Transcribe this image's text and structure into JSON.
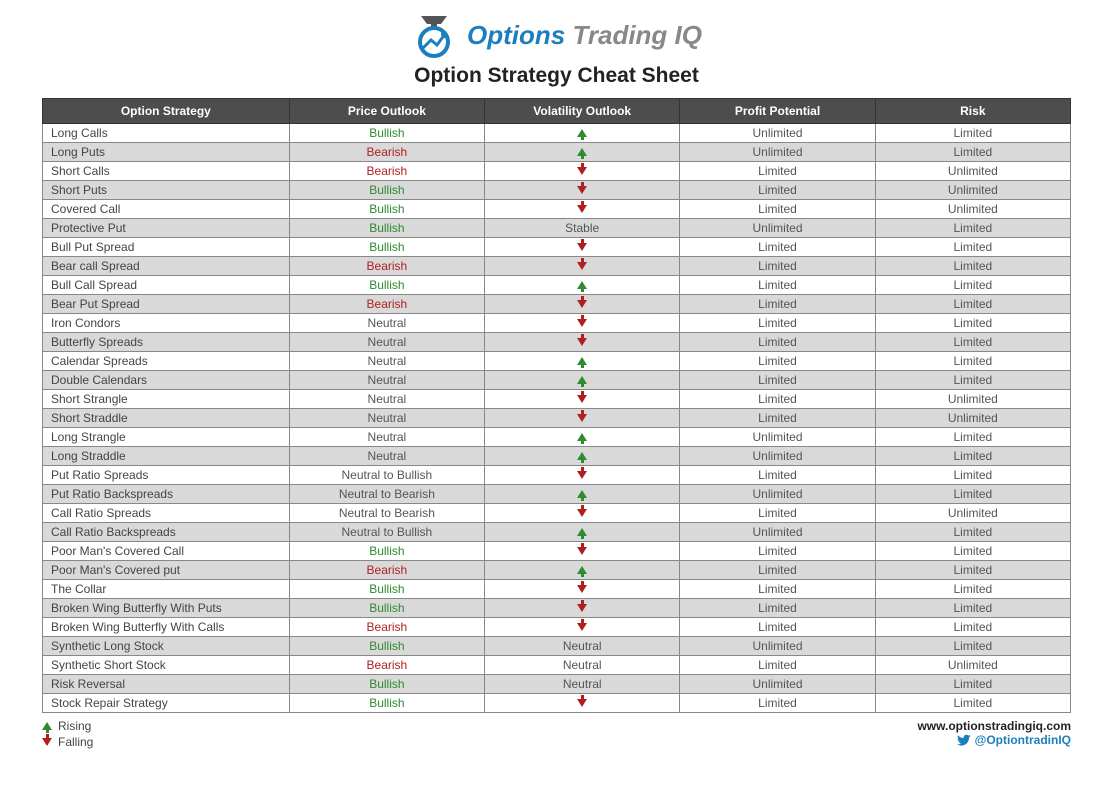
{
  "brand": {
    "title_part1": "Options",
    "title_part2": "Trading IQ",
    "color_primary": "#1b7fbd",
    "color_secondary": "#888888"
  },
  "page_title": "Option Strategy Cheat Sheet",
  "table": {
    "header_bg": "#4d4d4d",
    "header_fg": "#ffffff",
    "row_alt_bg": "#d9d9d9",
    "row_bg": "#ffffff",
    "border_color": "#888888",
    "bullish_color": "#2e8b2e",
    "bearish_color": "#b02020",
    "columns": [
      "Option Strategy",
      "Price Outlook",
      "Volatility Outlook",
      "Profit Potential",
      "Risk"
    ],
    "rows": [
      {
        "strategy": "Long Calls",
        "outlook": "Bullish",
        "vol": "up",
        "profit": "Unlimited",
        "risk": "Limited"
      },
      {
        "strategy": "Long Puts",
        "outlook": "Bearish",
        "vol": "up",
        "profit": "Unlimited",
        "risk": "Limited"
      },
      {
        "strategy": "Short Calls",
        "outlook": "Bearish",
        "vol": "down",
        "profit": "Limited",
        "risk": "Unlimited"
      },
      {
        "strategy": "Short Puts",
        "outlook": "Bullish",
        "vol": "down",
        "profit": "Limited",
        "risk": "Unlimited"
      },
      {
        "strategy": "Covered Call",
        "outlook": "Bullish",
        "vol": "down",
        "profit": "Limited",
        "risk": "Unlimited"
      },
      {
        "strategy": "Protective Put",
        "outlook": "Bullish",
        "vol": "Stable",
        "profit": "Unlimited",
        "risk": "Limited"
      },
      {
        "strategy": "Bull Put Spread",
        "outlook": "Bullish",
        "vol": "down",
        "profit": "Limited",
        "risk": "Limited"
      },
      {
        "strategy": "Bear call Spread",
        "outlook": "Bearish",
        "vol": "down",
        "profit": "Limited",
        "risk": "Limited"
      },
      {
        "strategy": "Bull Call Spread",
        "outlook": "Bullish",
        "vol": "up",
        "profit": "Limited",
        "risk": "Limited"
      },
      {
        "strategy": "Bear Put Spread",
        "outlook": "Bearish",
        "vol": "down",
        "profit": "Limited",
        "risk": "Limited"
      },
      {
        "strategy": "Iron Condors",
        "outlook": "Neutral",
        "vol": "down",
        "profit": "Limited",
        "risk": "Limited"
      },
      {
        "strategy": "Butterfly Spreads",
        "outlook": "Neutral",
        "vol": "down",
        "profit": "Limited",
        "risk": "Limited"
      },
      {
        "strategy": "Calendar Spreads",
        "outlook": "Neutral",
        "vol": "up",
        "profit": "Limited",
        "risk": "Limited"
      },
      {
        "strategy": "Double Calendars",
        "outlook": "Neutral",
        "vol": "up",
        "profit": "Limited",
        "risk": "Limited"
      },
      {
        "strategy": "Short Strangle",
        "outlook": "Neutral",
        "vol": "down",
        "profit": "Limited",
        "risk": "Unlimited"
      },
      {
        "strategy": "Short Straddle",
        "outlook": "Neutral",
        "vol": "down",
        "profit": "Limited",
        "risk": "Unlimited"
      },
      {
        "strategy": "Long Strangle",
        "outlook": "Neutral",
        "vol": "up",
        "profit": "Unlimited",
        "risk": "Limited"
      },
      {
        "strategy": "Long Straddle",
        "outlook": "Neutral",
        "vol": "up",
        "profit": "Unlimited",
        "risk": "Limited"
      },
      {
        "strategy": "Put Ratio Spreads",
        "outlook": "Neutral to Bullish",
        "vol": "down",
        "profit": "Limited",
        "risk": "Limited"
      },
      {
        "strategy": "Put Ratio Backspreads",
        "outlook": "Neutral to Bearish",
        "vol": "up",
        "profit": "Unlimited",
        "risk": "Limited"
      },
      {
        "strategy": "Call Ratio Spreads",
        "outlook": "Neutral to Bearish",
        "vol": "down",
        "profit": "Limited",
        "risk": "Unlimited"
      },
      {
        "strategy": "Call Ratio Backspreads",
        "outlook": "Neutral to Bullish",
        "vol": "up",
        "profit": "Unlimited",
        "risk": "Limited"
      },
      {
        "strategy": "Poor Man's Covered Call",
        "outlook": "Bullish",
        "vol": "down",
        "profit": "Limited",
        "risk": "Limited"
      },
      {
        "strategy": "Poor Man's Covered put",
        "outlook": "Bearish",
        "vol": "up",
        "profit": "Limited",
        "risk": "Limited"
      },
      {
        "strategy": "The Collar",
        "outlook": "Bullish",
        "vol": "down",
        "profit": "Limited",
        "risk": "Limited"
      },
      {
        "strategy": "Broken Wing Butterfly With Puts",
        "outlook": "Bullish",
        "vol": "down",
        "profit": "Limited",
        "risk": "Limited"
      },
      {
        "strategy": "Broken Wing Butterfly With Calls",
        "outlook": "Bearish",
        "vol": "down",
        "profit": "Limited",
        "risk": "Limited"
      },
      {
        "strategy": "Synthetic Long Stock",
        "outlook": "Bullish",
        "vol": "Neutral",
        "profit": "Unlimited",
        "risk": "Limited"
      },
      {
        "strategy": "Synthetic Short Stock",
        "outlook": "Bearish",
        "vol": "Neutral",
        "profit": "Limited",
        "risk": "Unlimited"
      },
      {
        "strategy": "Risk Reversal",
        "outlook": "Bullish",
        "vol": "Neutral",
        "profit": "Unlimited",
        "risk": "Limited"
      },
      {
        "strategy": "Stock Repair Strategy",
        "outlook": "Bullish",
        "vol": "down",
        "profit": "Limited",
        "risk": "Limited"
      }
    ]
  },
  "legend": {
    "rising": "Rising",
    "falling": "Falling"
  },
  "footer": {
    "url": "www.optionstradingiq.com",
    "handle": "@OptiontradinIQ"
  }
}
